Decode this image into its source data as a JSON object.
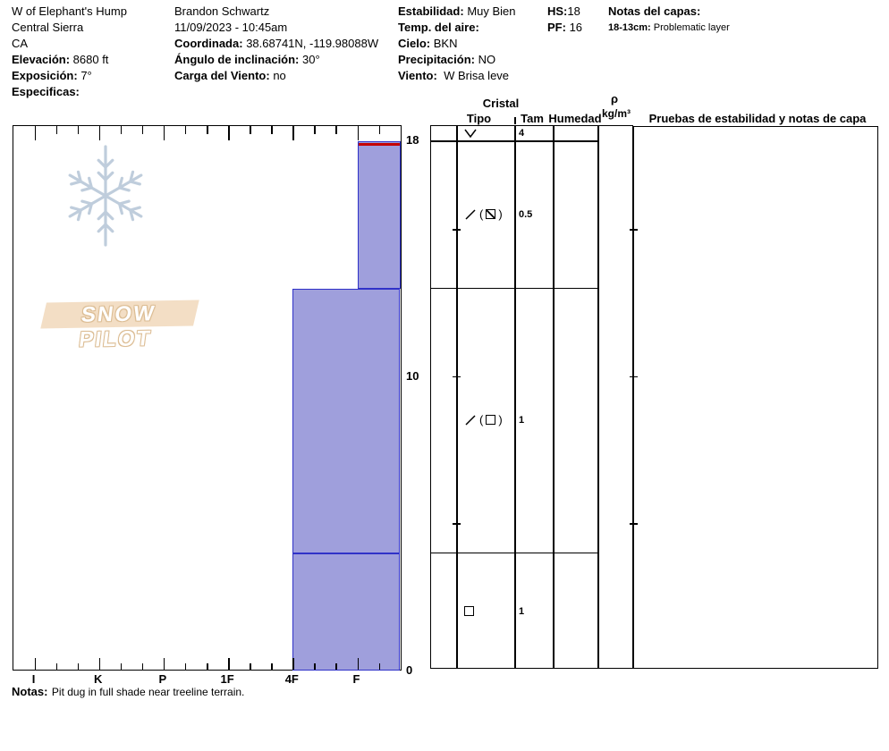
{
  "header": {
    "site": {
      "name": "W of Elephant's Hump",
      "region": "Central Sierra",
      "state": "CA",
      "elevation": {
        "label": "Elevación:",
        "value": "8680 ft"
      },
      "aspect": {
        "label": "Exposición:",
        "value": "7°"
      },
      "specifics": {
        "label": "Especificas:",
        "value": ""
      }
    },
    "observer": {
      "name": "Brandon Schwartz",
      "datetime": "11/09/2023 - 10:45am",
      "coordinates": {
        "label": "Coordinada:",
        "value": "38.68741N, -119.98088W"
      },
      "slope_angle": {
        "label": "Ángulo de inclinación:",
        "value": "30°"
      },
      "wind_loading": {
        "label": "Carga del Viento:",
        "value": "no"
      }
    },
    "conditions": {
      "stability": {
        "label": "Estabilidad:",
        "value": "Muy Bien"
      },
      "air_temp": {
        "label": "Temp. del aire:",
        "value": ""
      },
      "sky": {
        "label": "Cielo:",
        "value": "BKN"
      },
      "precip": {
        "label": "Precipitación:",
        "value": "NO"
      },
      "wind": {
        "label": "Viento:",
        "value": "W Brisa leve"
      }
    },
    "totals": {
      "hs": {
        "label": "HS:",
        "value": "18"
      },
      "pf": {
        "label": "PF:",
        "value": "16"
      }
    },
    "layer_notes": {
      "title": "Notas del capas:",
      "items": [
        {
          "range": "18-13cm:",
          "text": "Problematic layer"
        }
      ]
    }
  },
  "logo": {
    "text": "SNOW PILOT"
  },
  "chart_data": {
    "type": "bar",
    "description": "Snow pit hardness profile",
    "x_axis": {
      "categories": [
        "I",
        "K",
        "P",
        "1F",
        "4F",
        "F"
      ],
      "minor_ticks_per_interval": 2
    },
    "y_axis": {
      "unit": "cm",
      "tick_labels": [
        "18",
        "10",
        "0"
      ],
      "tick_values": [
        18,
        10,
        0
      ],
      "depth_tick_interval_cm": 5,
      "max_cm": 18.5
    },
    "hs_cm": 18,
    "pf_cm": 16,
    "layers": [
      {
        "top_cm": 18,
        "bottom_cm": 13,
        "hardness": "F",
        "problematic": true
      },
      {
        "top_cm": 13,
        "bottom_cm": 4,
        "hardness": "4F",
        "problematic": false
      },
      {
        "top_cm": 4,
        "bottom_cm": 0,
        "hardness": "4F",
        "problematic": false
      }
    ],
    "grain_rows": [
      {
        "top_cm": 18.5,
        "bottom_cm": 18,
        "symbols": [
          "surface-hoar-v"
        ],
        "size": "4"
      },
      {
        "top_cm": 18,
        "bottom_cm": 13,
        "symbols": [
          "slash",
          "paren-open",
          "square-diagonal",
          "paren-close"
        ],
        "size": "0.5"
      },
      {
        "top_cm": 13,
        "bottom_cm": 4,
        "symbols": [
          "slash",
          "paren-open",
          "square",
          "paren-close"
        ],
        "size": "1"
      },
      {
        "top_cm": 4,
        "bottom_cm": 0,
        "symbols": [
          "square"
        ],
        "size": "1"
      }
    ],
    "colors": {
      "bar_fill": "#9f9fdc",
      "bar_border": "#3032c8",
      "flag_red": "#c40000"
    }
  },
  "table": {
    "headers": {
      "cristal": "Cristal",
      "tipo": "Tipo",
      "tam": "Tam",
      "humedad": "Humedad",
      "rho": "ρ",
      "rho_unit": "kg/m³",
      "tests": "Pruebas de estabilidad y notas de capa"
    }
  },
  "footer": {
    "label": "Notas:",
    "text": "Pit dug in full shade near treeline terrain."
  }
}
